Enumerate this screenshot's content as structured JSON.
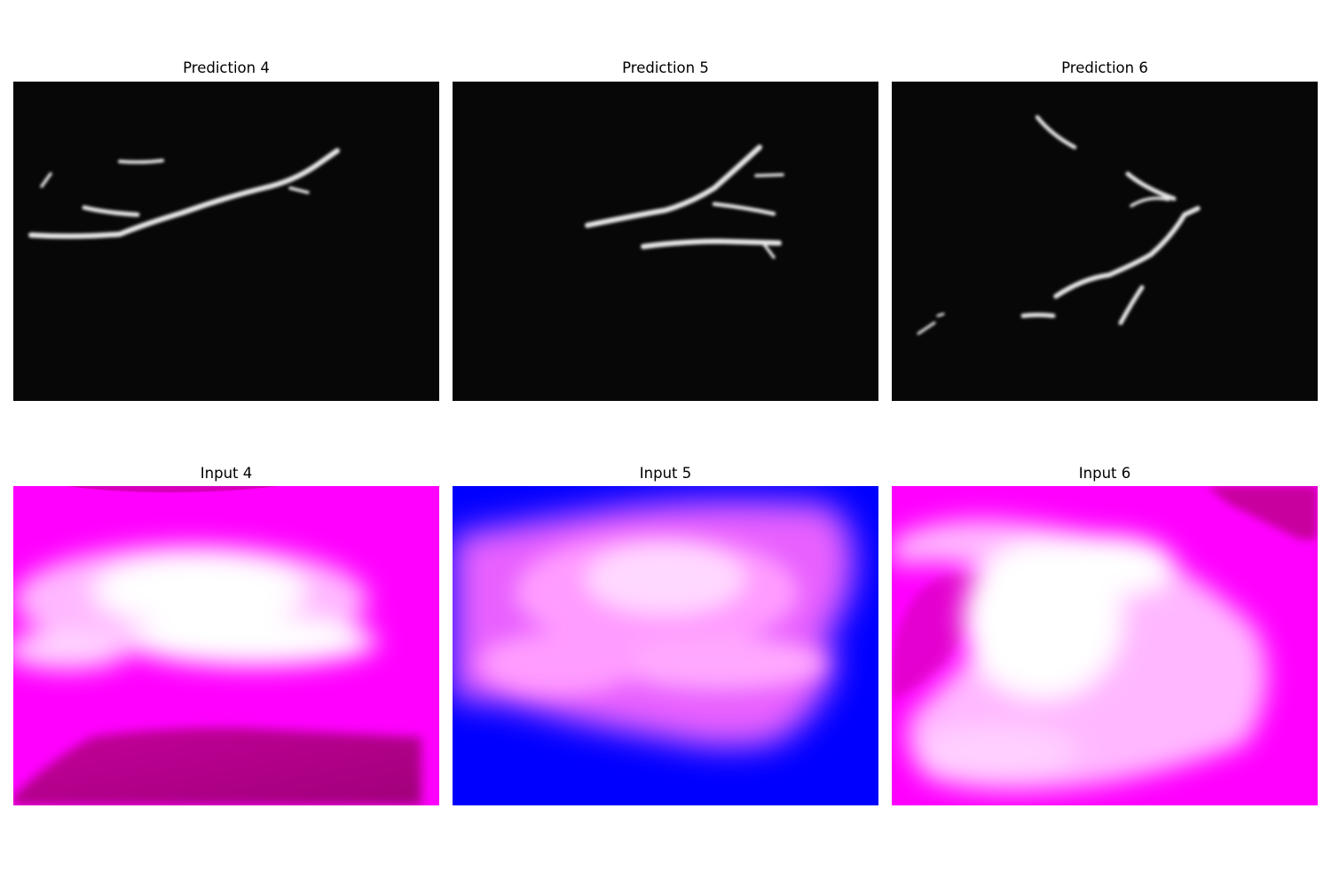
{
  "figure": {
    "prediction_titles": [
      "Prediction 4",
      "Prediction 5",
      "Prediction 6"
    ],
    "input_titles": [
      "Input 4",
      "Input 5",
      "Input 6"
    ],
    "colors": {
      "prediction_background": "#070707",
      "vein": "#e6e6e6",
      "input_magenta": "#ff00ff",
      "input_dark_magenta": "#a8007e",
      "input_blue": "#0000ff",
      "skin_highlight": "#ffffff"
    }
  }
}
